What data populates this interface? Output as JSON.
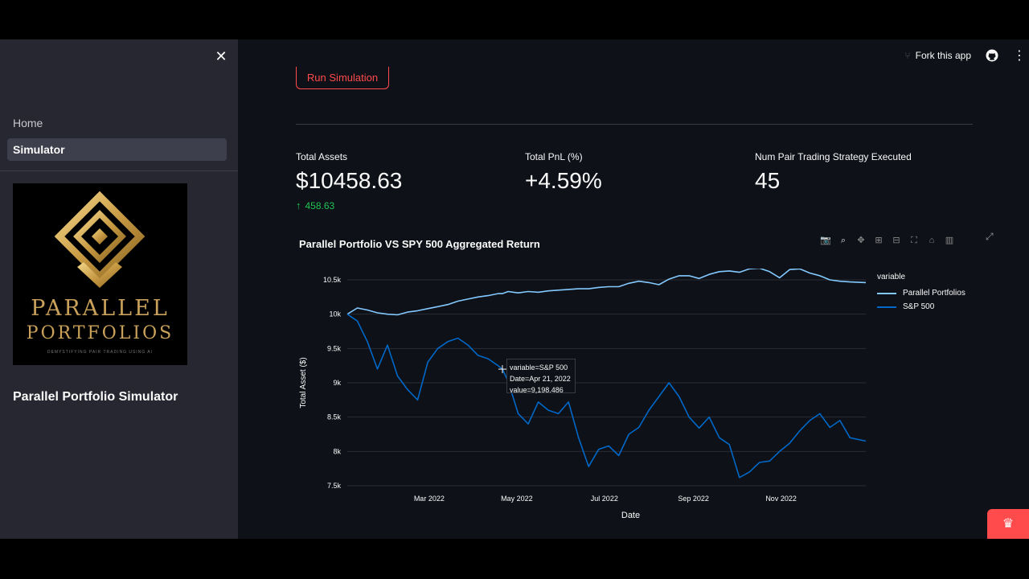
{
  "header": {
    "fork_label": "Fork this app",
    "menu_glyph": "⋮"
  },
  "sidebar": {
    "close_glyph": "✕",
    "items": [
      {
        "label": "Home",
        "active": false
      },
      {
        "label": "Simulator",
        "active": true
      }
    ],
    "logo": {
      "line1": "PARALLEL",
      "line2": "PORTFOLIOS",
      "tagline": "DEMYSTIFYING PAIR TRADING USING AI"
    },
    "title": "Parallel Portfolio Simulator"
  },
  "main": {
    "run_button_label": "Run Simulation",
    "metrics": [
      {
        "label": "Total Assets",
        "value": "$10458.63",
        "delta": "458.63"
      },
      {
        "label": "Total PnL (%)",
        "value": "+4.59%",
        "delta": ""
      },
      {
        "label": "Num Pair Trading Strategy Executed",
        "value": "45",
        "delta": ""
      }
    ]
  },
  "colors": {
    "accent": "#ff4b4b",
    "positive": "#21c354",
    "series_parallel": "#83c9ff",
    "series_sp500": "#0068c9"
  },
  "tooltip": {
    "line1": "variable=S&P 500",
    "line2": "Date=Apr 21, 2022",
    "line3": "value=9,198.486"
  },
  "chart_data": {
    "type": "line",
    "title": "Parallel Portfolio VS SPY 500 Aggregated Return",
    "xlabel": "Date",
    "ylabel": "Total Asset ($)",
    "legend_title": "variable",
    "legend_position": "right",
    "grid": true,
    "xlim": [
      "2022-01-03",
      "2022-12-30"
    ],
    "ylim": [
      7500,
      10500
    ],
    "x_ticks": [
      "Mar 2022",
      "May 2022",
      "Jul 2022",
      "Sep 2022",
      "Nov 2022"
    ],
    "y_ticks": [
      "7.5k",
      "8k",
      "8.5k",
      "9k",
      "9.5k",
      "10k",
      "10.5k"
    ],
    "x": [
      "2022-01-03",
      "2022-01-10",
      "2022-01-17",
      "2022-01-24",
      "2022-01-31",
      "2022-02-07",
      "2022-02-14",
      "2022-02-21",
      "2022-02-28",
      "2022-03-07",
      "2022-03-14",
      "2022-03-21",
      "2022-03-28",
      "2022-04-04",
      "2022-04-11",
      "2022-04-18",
      "2022-04-21",
      "2022-04-25",
      "2022-05-02",
      "2022-05-09",
      "2022-05-16",
      "2022-05-23",
      "2022-05-30",
      "2022-06-06",
      "2022-06-13",
      "2022-06-20",
      "2022-06-27",
      "2022-07-04",
      "2022-07-11",
      "2022-07-18",
      "2022-07-25",
      "2022-08-01",
      "2022-08-08",
      "2022-08-15",
      "2022-08-22",
      "2022-08-29",
      "2022-09-05",
      "2022-09-12",
      "2022-09-19",
      "2022-09-26",
      "2022-10-03",
      "2022-10-10",
      "2022-10-17",
      "2022-10-24",
      "2022-10-31",
      "2022-11-07",
      "2022-11-14",
      "2022-11-21",
      "2022-11-28",
      "2022-12-05",
      "2022-12-12",
      "2022-12-19",
      "2022-12-30"
    ],
    "series": [
      {
        "name": "Parallel Portfolios",
        "values": [
          10000,
          10090,
          10060,
          10020,
          10000,
          9990,
          10030,
          10050,
          10080,
          10110,
          10140,
          10190,
          10220,
          10250,
          10270,
          10300,
          10300,
          10330,
          10310,
          10330,
          10320,
          10340,
          10350,
          10360,
          10370,
          10370,
          10390,
          10400,
          10400,
          10450,
          10480,
          10460,
          10430,
          10510,
          10560,
          10560,
          10520,
          10580,
          10620,
          10630,
          10610,
          10660,
          10670,
          10620,
          10530,
          10650,
          10660,
          10600,
          10560,
          10500,
          10480,
          10470,
          10460
        ]
      },
      {
        "name": "S&P 500",
        "values": [
          10000,
          9900,
          9600,
          9200,
          9550,
          9100,
          8900,
          8750,
          9300,
          9500,
          9600,
          9650,
          9550,
          9400,
          9350,
          9250,
          9198.486,
          9020,
          8550,
          8400,
          8720,
          8600,
          8550,
          8720,
          8200,
          7780,
          8030,
          8080,
          7940,
          8250,
          8350,
          8600,
          8800,
          9000,
          8800,
          8500,
          8340,
          8500,
          8200,
          8100,
          7620,
          7700,
          7840,
          7860,
          8000,
          8120,
          8300,
          8450,
          8550,
          8350,
          8450,
          8200,
          8150
        ]
      }
    ]
  }
}
